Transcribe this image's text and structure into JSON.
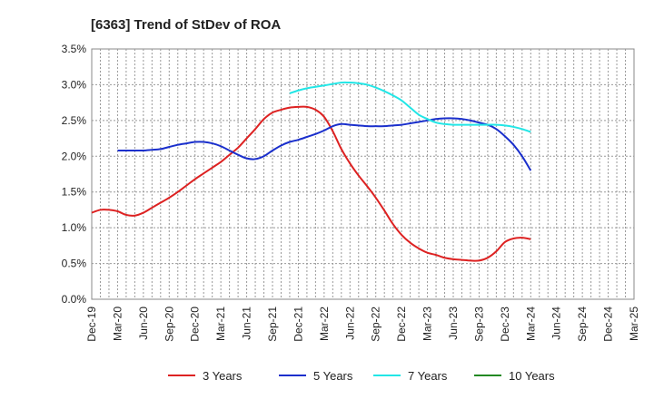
{
  "chart_data": {
    "type": "line",
    "title": "[6363]  Trend of StDev of ROA",
    "xlabel": "",
    "ylabel": "",
    "ylim": [
      0,
      3.5
    ],
    "y_ticks": [
      "0.0%",
      "0.5%",
      "1.0%",
      "1.5%",
      "2.0%",
      "2.5%",
      "3.0%",
      "3.5%"
    ],
    "x_ticks": [
      "Dec-19",
      "Mar-20",
      "Jun-20",
      "Sep-20",
      "Dec-20",
      "Mar-21",
      "Jun-21",
      "Sep-21",
      "Dec-21",
      "Mar-22",
      "Jun-22",
      "Sep-22",
      "Dec-22",
      "Mar-23",
      "Jun-23",
      "Sep-23",
      "Dec-23",
      "Mar-24",
      "Jun-24",
      "Sep-24",
      "Dec-24",
      "Mar-25"
    ],
    "grid": true,
    "legend_position": "bottom",
    "series": [
      {
        "name": "3 Years",
        "color": "#dd2222",
        "points": [
          [
            0,
            1.21
          ],
          [
            1,
            1.25
          ],
          [
            2,
            1.25
          ],
          [
            3,
            1.23
          ],
          [
            4,
            1.18
          ],
          [
            5,
            1.17
          ],
          [
            6,
            1.21
          ],
          [
            7,
            1.28
          ],
          [
            8,
            1.35
          ],
          [
            9,
            1.42
          ],
          [
            10,
            1.5
          ],
          [
            11,
            1.59
          ],
          [
            12,
            1.68
          ],
          [
            13,
            1.76
          ],
          [
            14,
            1.84
          ],
          [
            15,
            1.92
          ],
          [
            16,
            2.02
          ],
          [
            17,
            2.12
          ],
          [
            18,
            2.25
          ],
          [
            19,
            2.38
          ],
          [
            20,
            2.52
          ],
          [
            21,
            2.61
          ],
          [
            22,
            2.65
          ],
          [
            23,
            2.68
          ],
          [
            24,
            2.69
          ],
          [
            25,
            2.69
          ],
          [
            26,
            2.65
          ],
          [
            27,
            2.55
          ],
          [
            28,
            2.35
          ],
          [
            29,
            2.1
          ],
          [
            30,
            1.9
          ],
          [
            31,
            1.73
          ],
          [
            32,
            1.58
          ],
          [
            33,
            1.42
          ],
          [
            34,
            1.24
          ],
          [
            35,
            1.05
          ],
          [
            36,
            0.9
          ],
          [
            37,
            0.79
          ],
          [
            38,
            0.71
          ],
          [
            39,
            0.65
          ],
          [
            40,
            0.62
          ],
          [
            41,
            0.58
          ],
          [
            42,
            0.56
          ],
          [
            43,
            0.55
          ],
          [
            44,
            0.54
          ],
          [
            45,
            0.54
          ],
          [
            46,
            0.58
          ],
          [
            47,
            0.67
          ],
          [
            48,
            0.8
          ],
          [
            49,
            0.85
          ],
          [
            50,
            0.86
          ],
          [
            51,
            0.84
          ]
        ]
      },
      {
        "name": "5 Years",
        "color": "#1a2fcc",
        "points": [
          [
            3,
            2.08
          ],
          [
            4,
            2.08
          ],
          [
            5,
            2.08
          ],
          [
            6,
            2.08
          ],
          [
            7,
            2.09
          ],
          [
            8,
            2.1
          ],
          [
            9,
            2.13
          ],
          [
            10,
            2.16
          ],
          [
            11,
            2.18
          ],
          [
            12,
            2.2
          ],
          [
            13,
            2.2
          ],
          [
            14,
            2.18
          ],
          [
            15,
            2.14
          ],
          [
            16,
            2.08
          ],
          [
            17,
            2.02
          ],
          [
            18,
            1.97
          ],
          [
            19,
            1.96
          ],
          [
            20,
            2.0
          ],
          [
            21,
            2.08
          ],
          [
            22,
            2.15
          ],
          [
            23,
            2.2
          ],
          [
            24,
            2.23
          ],
          [
            25,
            2.27
          ],
          [
            26,
            2.31
          ],
          [
            27,
            2.36
          ],
          [
            28,
            2.42
          ],
          [
            29,
            2.45
          ],
          [
            30,
            2.44
          ],
          [
            31,
            2.43
          ],
          [
            32,
            2.42
          ],
          [
            33,
            2.42
          ],
          [
            34,
            2.42
          ],
          [
            35,
            2.43
          ],
          [
            36,
            2.44
          ],
          [
            37,
            2.46
          ],
          [
            38,
            2.48
          ],
          [
            39,
            2.5
          ],
          [
            40,
            2.52
          ],
          [
            41,
            2.53
          ],
          [
            42,
            2.53
          ],
          [
            43,
            2.52
          ],
          [
            44,
            2.5
          ],
          [
            45,
            2.47
          ],
          [
            46,
            2.44
          ],
          [
            47,
            2.38
          ],
          [
            48,
            2.28
          ],
          [
            49,
            2.16
          ],
          [
            50,
            2.0
          ],
          [
            51,
            1.8
          ]
        ]
      },
      {
        "name": "7 Years",
        "color": "#22e6e6",
        "points": [
          [
            23,
            2.88
          ],
          [
            24,
            2.92
          ],
          [
            25,
            2.95
          ],
          [
            26,
            2.97
          ],
          [
            27,
            2.99
          ],
          [
            28,
            3.01
          ],
          [
            29,
            3.03
          ],
          [
            30,
            3.03
          ],
          [
            31,
            3.02
          ],
          [
            32,
            3.0
          ],
          [
            33,
            2.96
          ],
          [
            34,
            2.91
          ],
          [
            35,
            2.85
          ],
          [
            36,
            2.78
          ],
          [
            37,
            2.68
          ],
          [
            38,
            2.58
          ],
          [
            39,
            2.52
          ],
          [
            40,
            2.47
          ],
          [
            41,
            2.45
          ],
          [
            42,
            2.44
          ],
          [
            43,
            2.44
          ],
          [
            44,
            2.44
          ],
          [
            45,
            2.44
          ],
          [
            46,
            2.44
          ],
          [
            47,
            2.44
          ],
          [
            48,
            2.43
          ],
          [
            49,
            2.41
          ],
          [
            50,
            2.38
          ],
          [
            51,
            2.34
          ]
        ]
      },
      {
        "name": "10 Years",
        "color": "#228822",
        "points": []
      }
    ]
  }
}
